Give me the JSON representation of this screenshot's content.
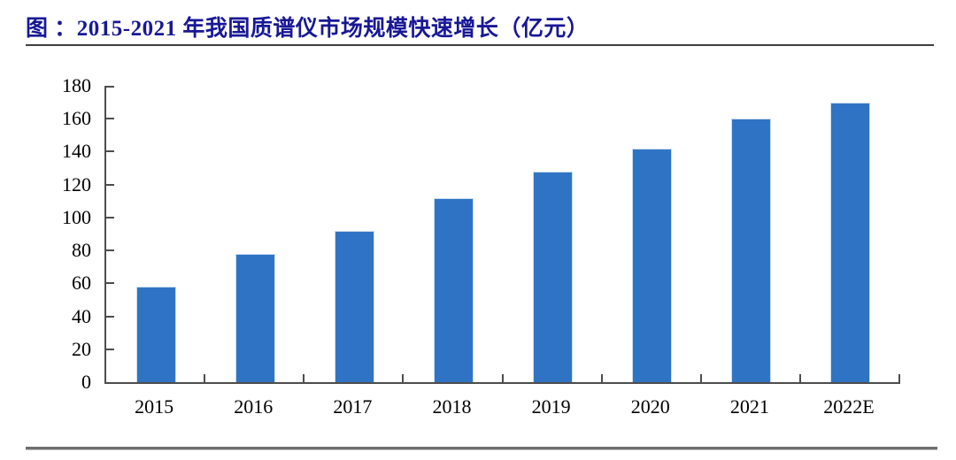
{
  "header": {
    "title": "图 ：2015-2021 年我国质谱仪市场规模快速增长（亿元）",
    "title_color": "#181896"
  },
  "chart_data": {
    "type": "bar",
    "title": "2015-2021 年我国质谱仪市场规模快速增长（亿元）",
    "categories": [
      "2015",
      "2016",
      "2017",
      "2018",
      "2019",
      "2020",
      "2021",
      "2022E"
    ],
    "values": [
      58,
      78,
      92,
      112,
      128,
      142,
      160,
      170
    ],
    "unit": "亿元",
    "xlabel": "",
    "ylabel": "",
    "ylim": [
      0,
      180
    ],
    "ytick_step": 20,
    "yticks": [
      0,
      20,
      40,
      60,
      80,
      100,
      120,
      140,
      160,
      180
    ],
    "grid": false,
    "legend": false,
    "bar_color": "#2F74C4",
    "bar_border_color": "#cdddf0",
    "axis_color": "#4d4d4d",
    "tick_style": "inside"
  }
}
